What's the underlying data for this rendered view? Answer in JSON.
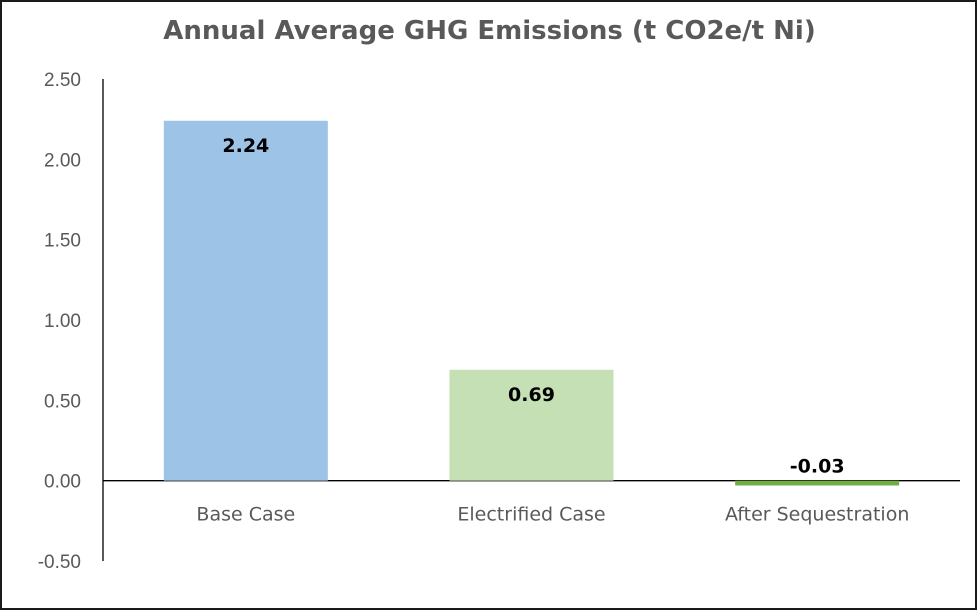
{
  "chart_data": {
    "type": "bar",
    "title": "Annual Average GHG Emissions (t CO2e/t Ni)",
    "categories": [
      "Base Case",
      "Electrified Case",
      "After Sequestration"
    ],
    "values": [
      2.24,
      0.69,
      -0.03
    ],
    "data_labels": [
      "2.24",
      "0.69",
      "-0.03"
    ],
    "bar_colors": [
      "#9DC3E6",
      "#C5E0B4",
      "#70AD47"
    ],
    "ylim": [
      -0.5,
      2.5
    ],
    "yticks": [
      2.5,
      2.0,
      1.5,
      1.0,
      0.5,
      0.0,
      -0.5
    ],
    "ytick_labels": [
      "2.50",
      "2.00",
      "1.50",
      "1.00",
      "0.50",
      "0.00",
      "-0.50"
    ],
    "xlabel": "",
    "ylabel": "",
    "grid": false,
    "legend": false
  }
}
